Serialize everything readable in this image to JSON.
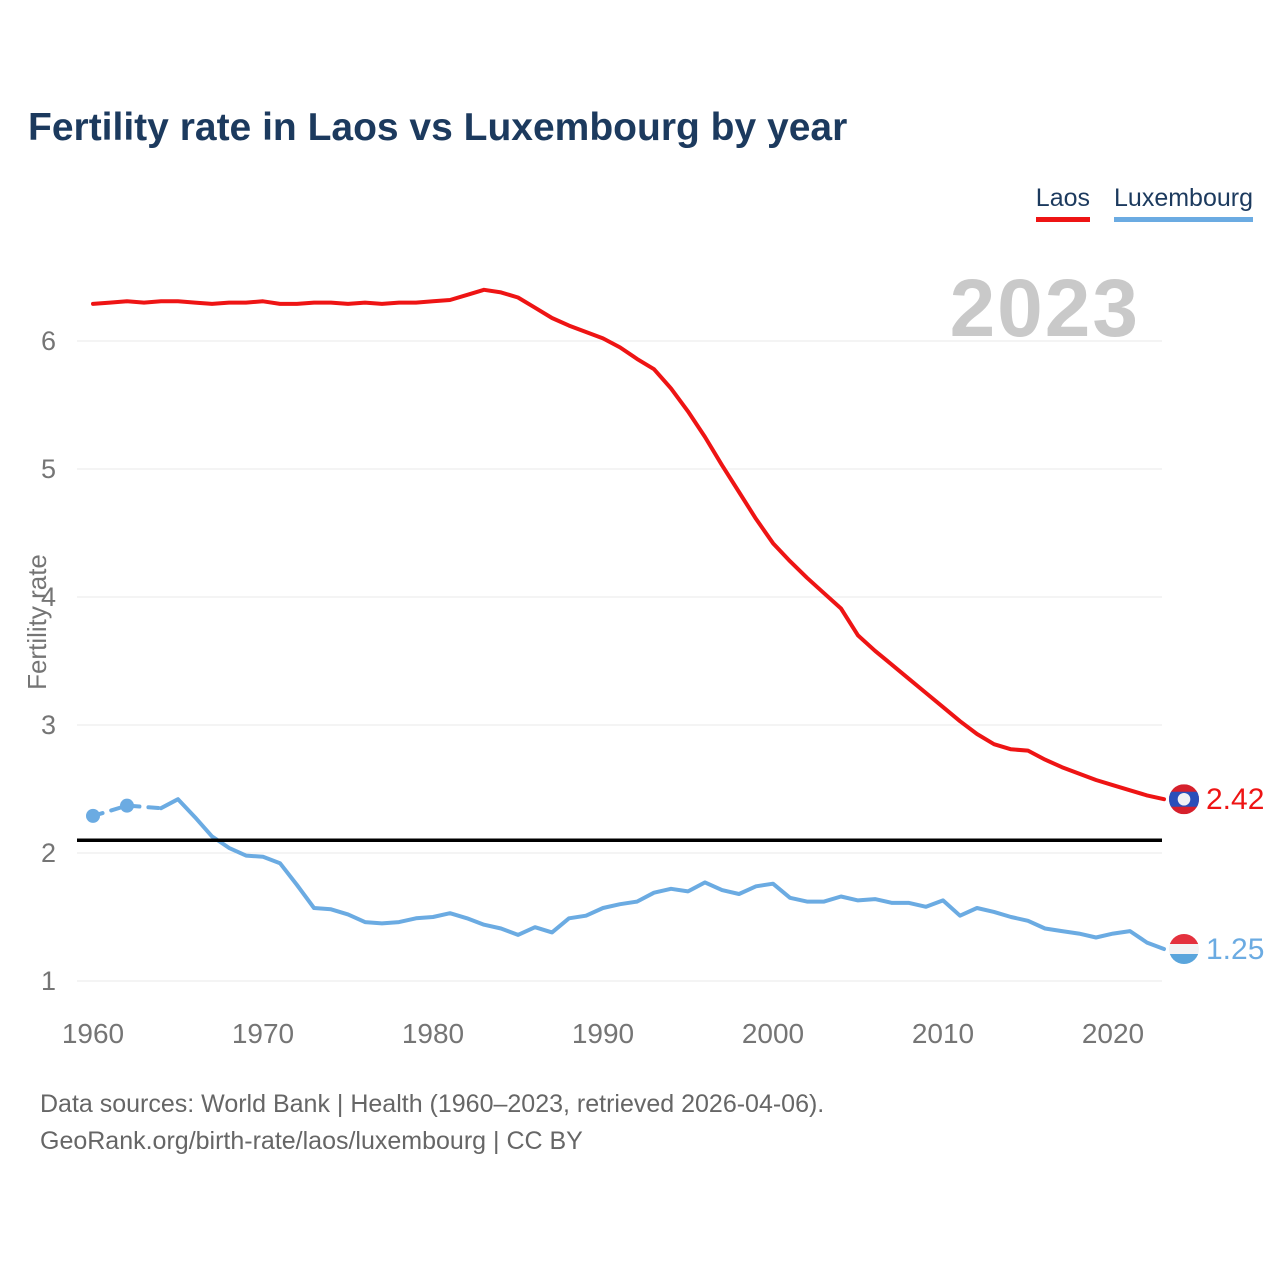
{
  "header": {
    "title": "Fertility rate in Laos vs Luxembourg by year"
  },
  "legend": {
    "items": [
      {
        "label": "Laos",
        "color": "#ee1414"
      },
      {
        "label": "Luxembourg",
        "color": "#6babe2"
      }
    ]
  },
  "watermark": "2023",
  "footer": {
    "line1": "Data sources: World Bank | Health (1960–2023, retrieved 2026-04-06).",
    "line2": "GeoRank.org/birth-rate/laos/luxembourg | CC BY"
  },
  "chart_data": {
    "type": "line",
    "title": "Fertility rate in Laos vs Luxembourg by year",
    "xlabel": "",
    "ylabel": "Fertility rate",
    "ylim": [
      1,
      6.5
    ],
    "yticks": [
      1,
      2,
      3,
      4,
      5,
      6
    ],
    "xticks": [
      1960,
      1970,
      1980,
      1990,
      2000,
      2010,
      2020
    ],
    "grid": true,
    "legend_position": "top-right",
    "watermark": "2023",
    "replacement_level_line": 2.1,
    "x": [
      1960,
      1961,
      1962,
      1963,
      1964,
      1965,
      1966,
      1967,
      1968,
      1969,
      1970,
      1971,
      1972,
      1973,
      1974,
      1975,
      1976,
      1977,
      1978,
      1979,
      1980,
      1981,
      1982,
      1983,
      1984,
      1985,
      1986,
      1987,
      1988,
      1989,
      1990,
      1991,
      1992,
      1993,
      1994,
      1995,
      1996,
      1997,
      1998,
      1999,
      2000,
      2001,
      2002,
      2003,
      2004,
      2005,
      2006,
      2007,
      2008,
      2009,
      2010,
      2011,
      2012,
      2013,
      2014,
      2015,
      2016,
      2017,
      2018,
      2019,
      2020,
      2021,
      2022,
      2023
    ],
    "series": [
      {
        "name": "Laos",
        "color": "#ee1414",
        "end_label": "2.42",
        "flag": {
          "type": "laos",
          "red": "#d6202c",
          "blue": "#2a4fba",
          "disc": "#f0f1f5"
        },
        "values": [
          6.29,
          6.3,
          6.31,
          6.3,
          6.31,
          6.31,
          6.3,
          6.29,
          6.3,
          6.3,
          6.31,
          6.29,
          6.29,
          6.3,
          6.3,
          6.29,
          6.3,
          6.29,
          6.3,
          6.3,
          6.31,
          6.32,
          6.36,
          6.4,
          6.38,
          6.34,
          6.26,
          6.18,
          6.12,
          6.07,
          6.02,
          5.95,
          5.86,
          5.78,
          5.63,
          5.45,
          5.25,
          5.03,
          4.82,
          4.61,
          4.42,
          4.28,
          4.15,
          4.03,
          3.91,
          3.7,
          3.58,
          3.47,
          3.36,
          3.25,
          3.14,
          3.03,
          2.93,
          2.85,
          2.81,
          2.8,
          2.73,
          2.67,
          2.62,
          2.57,
          2.53,
          2.49,
          2.45,
          2.42
        ]
      },
      {
        "name": "Luxembourg",
        "color": "#6babe2",
        "end_label": "1.25",
        "dashed_until_index": 4,
        "marker_indices": [
          0,
          2
        ],
        "flag": {
          "type": "luxembourg",
          "red": "#e4313e",
          "white": "#f2f3f5",
          "blue": "#5aa5dc"
        },
        "values": [
          2.29,
          2.33,
          2.37,
          2.36,
          2.35,
          2.42,
          2.28,
          2.13,
          2.04,
          1.98,
          1.97,
          1.92,
          1.75,
          1.57,
          1.56,
          1.52,
          1.46,
          1.45,
          1.46,
          1.49,
          1.5,
          1.53,
          1.49,
          1.44,
          1.41,
          1.36,
          1.42,
          1.38,
          1.49,
          1.51,
          1.57,
          1.6,
          1.62,
          1.69,
          1.72,
          1.7,
          1.77,
          1.71,
          1.68,
          1.74,
          1.76,
          1.65,
          1.62,
          1.62,
          1.66,
          1.63,
          1.64,
          1.61,
          1.61,
          1.58,
          1.63,
          1.51,
          1.57,
          1.54,
          1.5,
          1.47,
          1.41,
          1.39,
          1.37,
          1.34,
          1.37,
          1.39,
          1.3,
          1.25
        ]
      }
    ]
  },
  "style": {
    "grid_color": "#e9e9e9",
    "tick_color": "#757575",
    "watermark_color": "#c9c9c9",
    "black_line_color": "#000000"
  }
}
